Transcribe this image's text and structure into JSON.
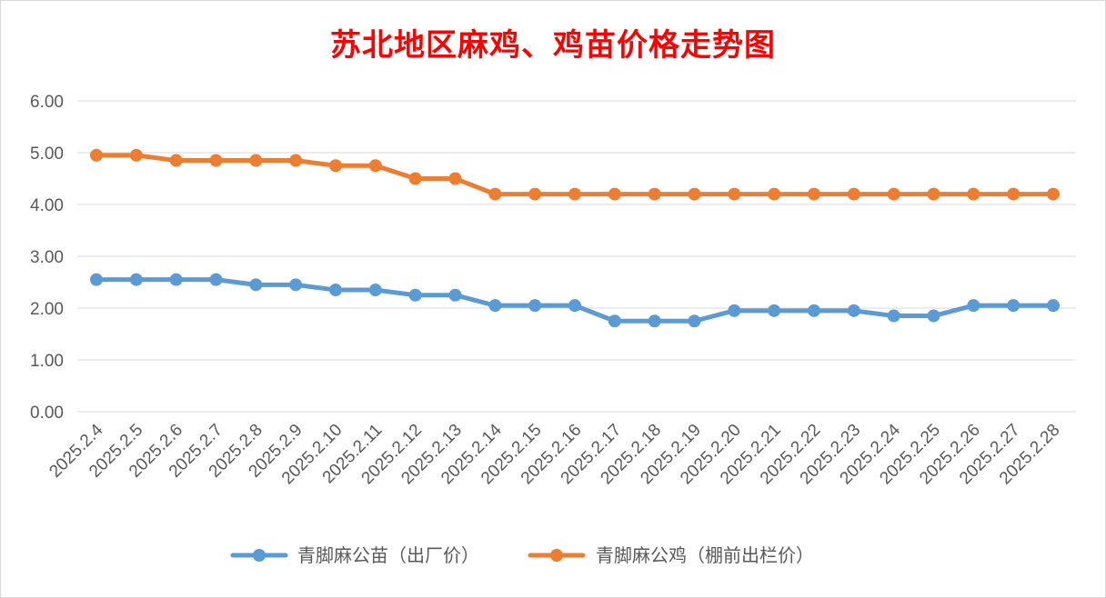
{
  "chart_data": {
    "type": "line",
    "title": "苏北地区麻鸡、鸡苗价格走势图",
    "categories": [
      "2025.2.4",
      "2025.2.5",
      "2025.2.6",
      "2025.2.7",
      "2025.2.8",
      "2025.2.9",
      "2025.2.10",
      "2025.2.11",
      "2025.2.12",
      "2025.2.13",
      "2025.2.14",
      "2025.2.15",
      "2025.2.16",
      "2025.2.17",
      "2025.2.18",
      "2025.2.19",
      "2025.2.20",
      "2025.2.21",
      "2025.2.22",
      "2025.2.23",
      "2025.2.24",
      "2025.2.25",
      "2025.2.26",
      "2025.2.27",
      "2025.2.28"
    ],
    "series": [
      {
        "name": "青脚麻公苗（出厂价）",
        "color": "#5b9bd5",
        "values": [
          2.55,
          2.55,
          2.55,
          2.55,
          2.45,
          2.45,
          2.35,
          2.35,
          2.25,
          2.25,
          2.05,
          2.05,
          2.05,
          1.75,
          1.75,
          1.75,
          1.95,
          1.95,
          1.95,
          1.95,
          1.85,
          1.85,
          2.05,
          2.05,
          2.05
        ]
      },
      {
        "name": "青脚麻公鸡（棚前出栏价）",
        "color": "#ed7d31",
        "values": [
          4.95,
          4.95,
          4.85,
          4.85,
          4.85,
          4.85,
          4.75,
          4.75,
          4.5,
          4.5,
          4.2,
          4.2,
          4.2,
          4.2,
          4.2,
          4.2,
          4.2,
          4.2,
          4.2,
          4.2,
          4.2,
          4.2,
          4.2,
          4.2,
          4.2
        ]
      }
    ],
    "yticks": [
      "0.00",
      "1.00",
      "2.00",
      "3.00",
      "4.00",
      "5.00",
      "6.00"
    ],
    "ylim": [
      0,
      6
    ],
    "grid": true,
    "legend_position": "bottom"
  }
}
